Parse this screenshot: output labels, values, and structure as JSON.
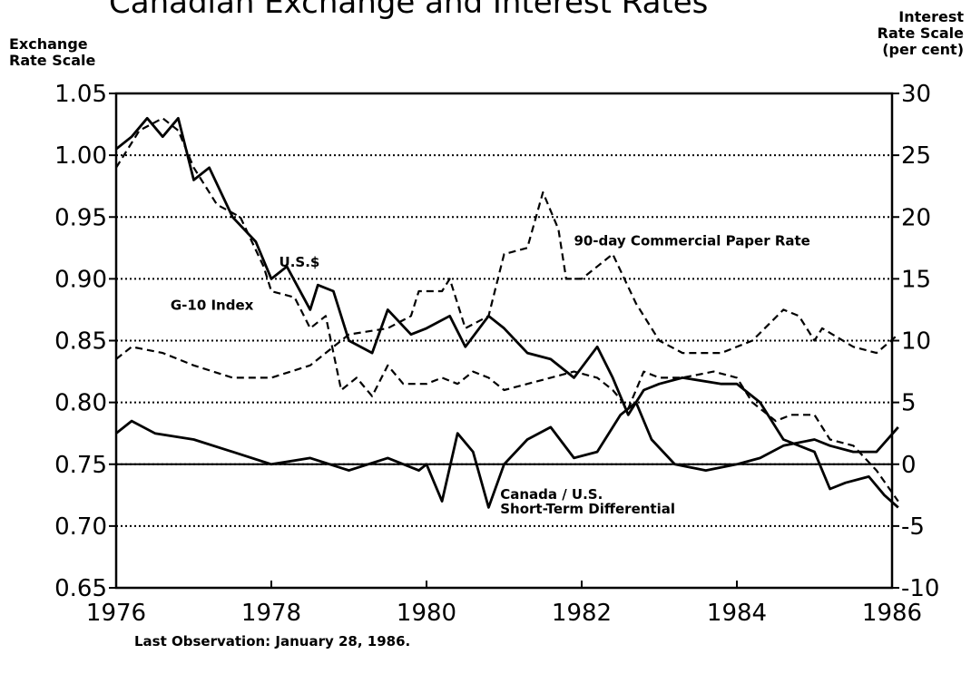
{
  "chart_data": {
    "type": "line",
    "title": "Canadian Exchange and Interest Rates",
    "y_label_lines": [
      "Exchange",
      "Rate Scale"
    ],
    "y2_label_lines": [
      "Interest",
      "Rate Scale",
      "(per cent)"
    ],
    "footnote": "Last Observation: January 28, 1986.",
    "xlim": [
      1976,
      1986
    ],
    "xticks": [
      1976,
      1978,
      1980,
      1982,
      1984,
      1986
    ],
    "ylim": [
      0.65,
      1.05
    ],
    "yticks": [
      0.65,
      {
        "value": 0.7,
        "label": "0.70"
      },
      0.75,
      {
        "value": 0.8,
        "label": "0.80"
      },
      0.85,
      {
        "value": 0.9,
        "label": "0.90"
      },
      0.95,
      {
        "value": 1,
        "label": "1.00"
      },
      1.05
    ],
    "y2lim": [
      -10,
      30
    ],
    "y2ticks": [
      -10,
      -5,
      0,
      5,
      10,
      15,
      20,
      25,
      30
    ],
    "grid": true,
    "series": [
      {
        "color": "#000000",
        "dash": false,
        "axis": "y",
        "x": [
          1976,
          1976.2,
          1976.4,
          1976.6,
          1976.8,
          1977.0,
          1977.2,
          1977.5,
          1977.8,
          1978.0,
          1978.2,
          1978.5,
          1978.6,
          1978.8,
          1979.0,
          1979.3,
          1979.5,
          1979.8,
          1980.0,
          1980.3,
          1980.5,
          1980.8,
          1981.0,
          1981.3,
          1981.6,
          1981.9,
          1982.2,
          1982.4,
          1982.6,
          1982.8,
          1983.0,
          1983.3,
          1983.8,
          1984.0,
          1984.3,
          1984.6,
          1984.8,
          1985.0,
          1985.2,
          1985.4,
          1985.7,
          1985.9,
          1986.08
        ],
        "values": [
          1.005,
          1.015,
          1.03,
          1.015,
          1.03,
          0.98,
          0.99,
          0.95,
          0.93,
          0.9,
          0.91,
          0.875,
          0.895,
          0.89,
          0.85,
          0.84,
          0.875,
          0.855,
          0.86,
          0.87,
          0.845,
          0.87,
          0.86,
          0.84,
          0.835,
          0.82,
          0.845,
          0.82,
          0.79,
          0.81,
          0.815,
          0.82,
          0.815,
          0.815,
          0.8,
          0.77,
          0.765,
          0.76,
          0.73,
          0.735,
          0.74,
          0.725,
          0.715
        ]
      },
      {
        "color": "#000000",
        "dash": true,
        "axis": "y",
        "x": [
          1976,
          1976.3,
          1976.6,
          1976.8,
          1977.0,
          1977.3,
          1977.6,
          1977.9,
          1978.0,
          1978.3,
          1978.5,
          1978.7,
          1978.9,
          1979.1,
          1979.3,
          1979.5,
          1979.7,
          1980.0,
          1980.2,
          1980.4,
          1980.6,
          1980.8,
          1981.0,
          1981.3,
          1981.6,
          1981.9,
          1982.2,
          1982.4,
          1982.6,
          1982.8,
          1983.0,
          1983.3,
          1983.7,
          1984.0,
          1984.2,
          1984.5,
          1984.7,
          1985.0,
          1985.2,
          1985.5,
          1985.8,
          1986.08
        ],
        "values": [
          0.99,
          1.02,
          1.03,
          1.02,
          0.99,
          0.96,
          0.95,
          0.91,
          0.89,
          0.885,
          0.86,
          0.87,
          0.81,
          0.82,
          0.805,
          0.83,
          0.815,
          0.815,
          0.82,
          0.815,
          0.825,
          0.82,
          0.81,
          0.815,
          0.82,
          0.825,
          0.82,
          0.81,
          0.795,
          0.825,
          0.82,
          0.82,
          0.825,
          0.82,
          0.8,
          0.785,
          0.79,
          0.79,
          0.77,
          0.765,
          0.745,
          0.72
        ]
      },
      {
        "color": "#000000",
        "dash": true,
        "axis": "y2",
        "x": [
          1976,
          1976.2,
          1976.6,
          1977.0,
          1977.5,
          1978.0,
          1978.5,
          1978.8,
          1979.0,
          1979.5,
          1979.8,
          1979.9,
          1980.2,
          1980.3,
          1980.5,
          1980.8,
          1981.0,
          1981.3,
          1981.5,
          1981.7,
          1981.8,
          1982.0,
          1982.2,
          1982.4,
          1982.7,
          1983.0,
          1983.3,
          1983.8,
          1984.2,
          1984.6,
          1984.8,
          1985.0,
          1985.1,
          1985.5,
          1985.8,
          1986.08
        ],
        "values": [
          8.5,
          9.5,
          9,
          8,
          7,
          7,
          8,
          9.5,
          10.5,
          11,
          12,
          14,
          14,
          15,
          11,
          12,
          17,
          17.5,
          22,
          19,
          15,
          15,
          16,
          17,
          13,
          10,
          9,
          9,
          10,
          12.5,
          12,
          10,
          11,
          9.5,
          9,
          10.5
        ]
      },
      {
        "color": "#000000",
        "dash": false,
        "axis": "y2",
        "x": [
          1976,
          1976.2,
          1976.5,
          1977.0,
          1977.5,
          1978.0,
          1978.5,
          1979.0,
          1979.5,
          1979.9,
          1980.0,
          1980.2,
          1980.4,
          1980.6,
          1980.8,
          1981.0,
          1981.3,
          1981.6,
          1981.9,
          1982.2,
          1982.5,
          1982.7,
          1982.9,
          1983.2,
          1983.6,
          1984.0,
          1984.3,
          1984.6,
          1985.0,
          1985.2,
          1985.5,
          1985.8,
          1986.08
        ],
        "values": [
          2.5,
          3.5,
          2.5,
          2,
          1,
          0,
          0.5,
          -0.5,
          0.5,
          -0.5,
          0,
          -3,
          2.5,
          1,
          -3.5,
          0,
          2,
          3,
          0.5,
          1,
          4,
          5,
          2,
          0,
          -0.5,
          0,
          0.5,
          1.5,
          2,
          1.5,
          1,
          1,
          3
        ]
      }
    ],
    "annotations": [
      {
        "lines": [
          "U.S.$"
        ],
        "x": 1978.1,
        "y": 0.91
      },
      {
        "lines": [
          "G-10 Index"
        ],
        "x": 1976.7,
        "y": 0.875
      },
      {
        "lines": [
          "90-day Commercial Paper Rate"
        ],
        "x": 1981.9,
        "y": 0.927
      },
      {
        "lines": [
          "Canada / U.S.",
          "Short-Term Differential"
        ],
        "x": 1980.95,
        "y": 0.722
      }
    ]
  }
}
